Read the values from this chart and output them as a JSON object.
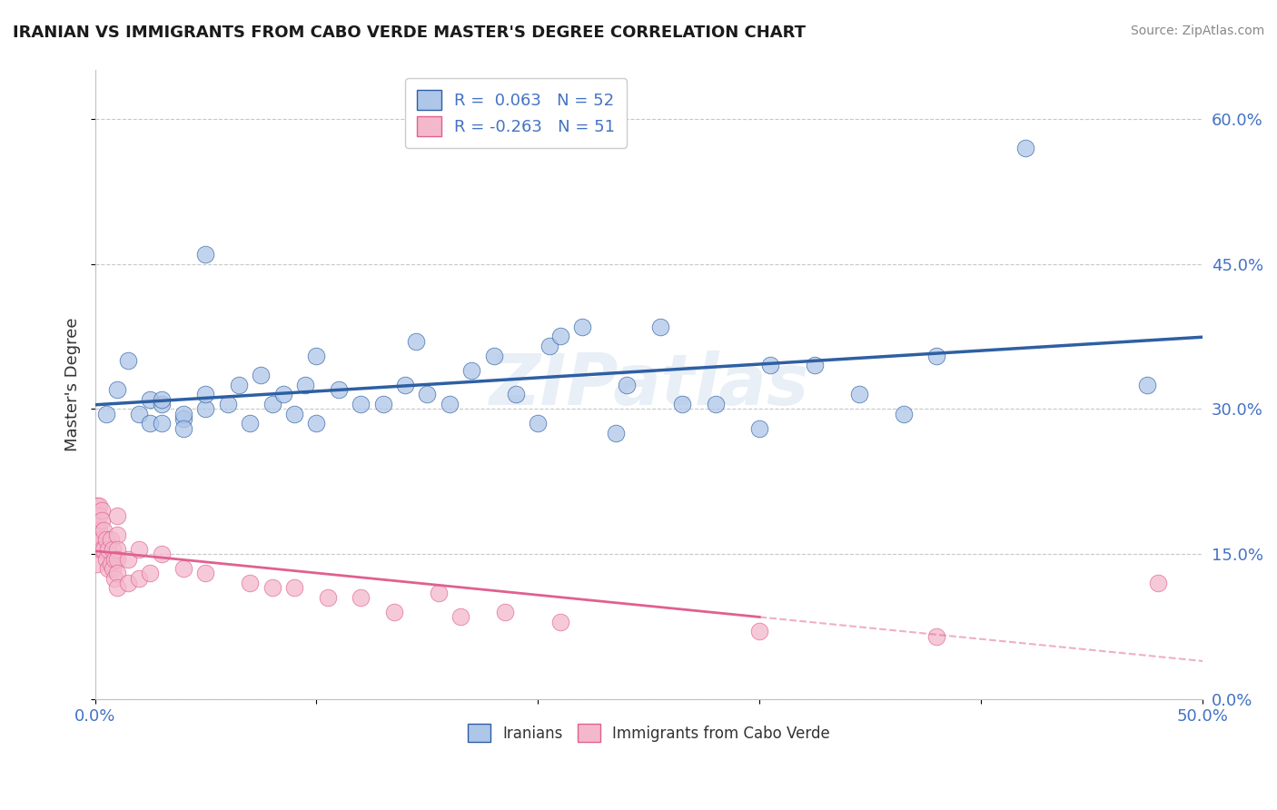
{
  "title": "IRANIAN VS IMMIGRANTS FROM CABO VERDE MASTER'S DEGREE CORRELATION CHART",
  "source": "Source: ZipAtlas.com",
  "ylabel": "Master's Degree",
  "xlim": [
    0.0,
    0.5
  ],
  "ylim": [
    0.0,
    0.65
  ],
  "xticks": [
    0.0,
    0.1,
    0.2,
    0.3,
    0.4,
    0.5
  ],
  "yticks": [
    0.0,
    0.15,
    0.3,
    0.45,
    0.6
  ],
  "xticklabels": [
    "0.0%",
    "",
    "",
    "",
    "",
    "50.0%"
  ],
  "yticklabels_right": [
    "0.0%",
    "15.0%",
    "30.0%",
    "45.0%",
    "60.0%"
  ],
  "watermark": "ZIPatlas",
  "color_iranian": "#aec6e8",
  "color_cabo": "#f4b8cb",
  "line_color_iranian": "#2e5fa3",
  "line_color_cabo": "#e06090",
  "background_color": "#ffffff",
  "iranians_x": [
    0.005,
    0.01,
    0.015,
    0.02,
    0.025,
    0.025,
    0.03,
    0.03,
    0.03,
    0.04,
    0.04,
    0.04,
    0.05,
    0.05,
    0.05,
    0.06,
    0.065,
    0.07,
    0.075,
    0.08,
    0.085,
    0.09,
    0.095,
    0.1,
    0.1,
    0.11,
    0.12,
    0.13,
    0.14,
    0.145,
    0.15,
    0.16,
    0.17,
    0.18,
    0.19,
    0.2,
    0.205,
    0.21,
    0.22,
    0.235,
    0.24,
    0.255,
    0.265,
    0.28,
    0.3,
    0.305,
    0.325,
    0.345,
    0.365,
    0.38,
    0.42,
    0.475
  ],
  "iranians_y": [
    0.295,
    0.32,
    0.35,
    0.295,
    0.31,
    0.285,
    0.285,
    0.305,
    0.31,
    0.29,
    0.295,
    0.28,
    0.3,
    0.315,
    0.46,
    0.305,
    0.325,
    0.285,
    0.335,
    0.305,
    0.315,
    0.295,
    0.325,
    0.285,
    0.355,
    0.32,
    0.305,
    0.305,
    0.325,
    0.37,
    0.315,
    0.305,
    0.34,
    0.355,
    0.315,
    0.285,
    0.365,
    0.375,
    0.385,
    0.275,
    0.325,
    0.385,
    0.305,
    0.305,
    0.28,
    0.345,
    0.345,
    0.315,
    0.295,
    0.355,
    0.57,
    0.325
  ],
  "cabo_x": [
    0.001,
    0.001,
    0.001,
    0.001,
    0.001,
    0.002,
    0.002,
    0.002,
    0.003,
    0.003,
    0.003,
    0.003,
    0.004,
    0.004,
    0.005,
    0.005,
    0.006,
    0.006,
    0.007,
    0.007,
    0.008,
    0.008,
    0.009,
    0.009,
    0.01,
    0.01,
    0.01,
    0.01,
    0.01,
    0.01,
    0.015,
    0.015,
    0.02,
    0.02,
    0.025,
    0.03,
    0.04,
    0.05,
    0.07,
    0.08,
    0.09,
    0.105,
    0.12,
    0.135,
    0.155,
    0.165,
    0.185,
    0.21,
    0.3,
    0.38,
    0.48
  ],
  "cabo_y": [
    0.2,
    0.18,
    0.165,
    0.155,
    0.14,
    0.2,
    0.19,
    0.175,
    0.195,
    0.185,
    0.165,
    0.155,
    0.175,
    0.155,
    0.165,
    0.145,
    0.155,
    0.135,
    0.165,
    0.14,
    0.155,
    0.135,
    0.145,
    0.125,
    0.19,
    0.17,
    0.155,
    0.145,
    0.13,
    0.115,
    0.145,
    0.12,
    0.155,
    0.125,
    0.13,
    0.15,
    0.135,
    0.13,
    0.12,
    0.115,
    0.115,
    0.105,
    0.105,
    0.09,
    0.11,
    0.085,
    0.09,
    0.08,
    0.07,
    0.065,
    0.12
  ]
}
